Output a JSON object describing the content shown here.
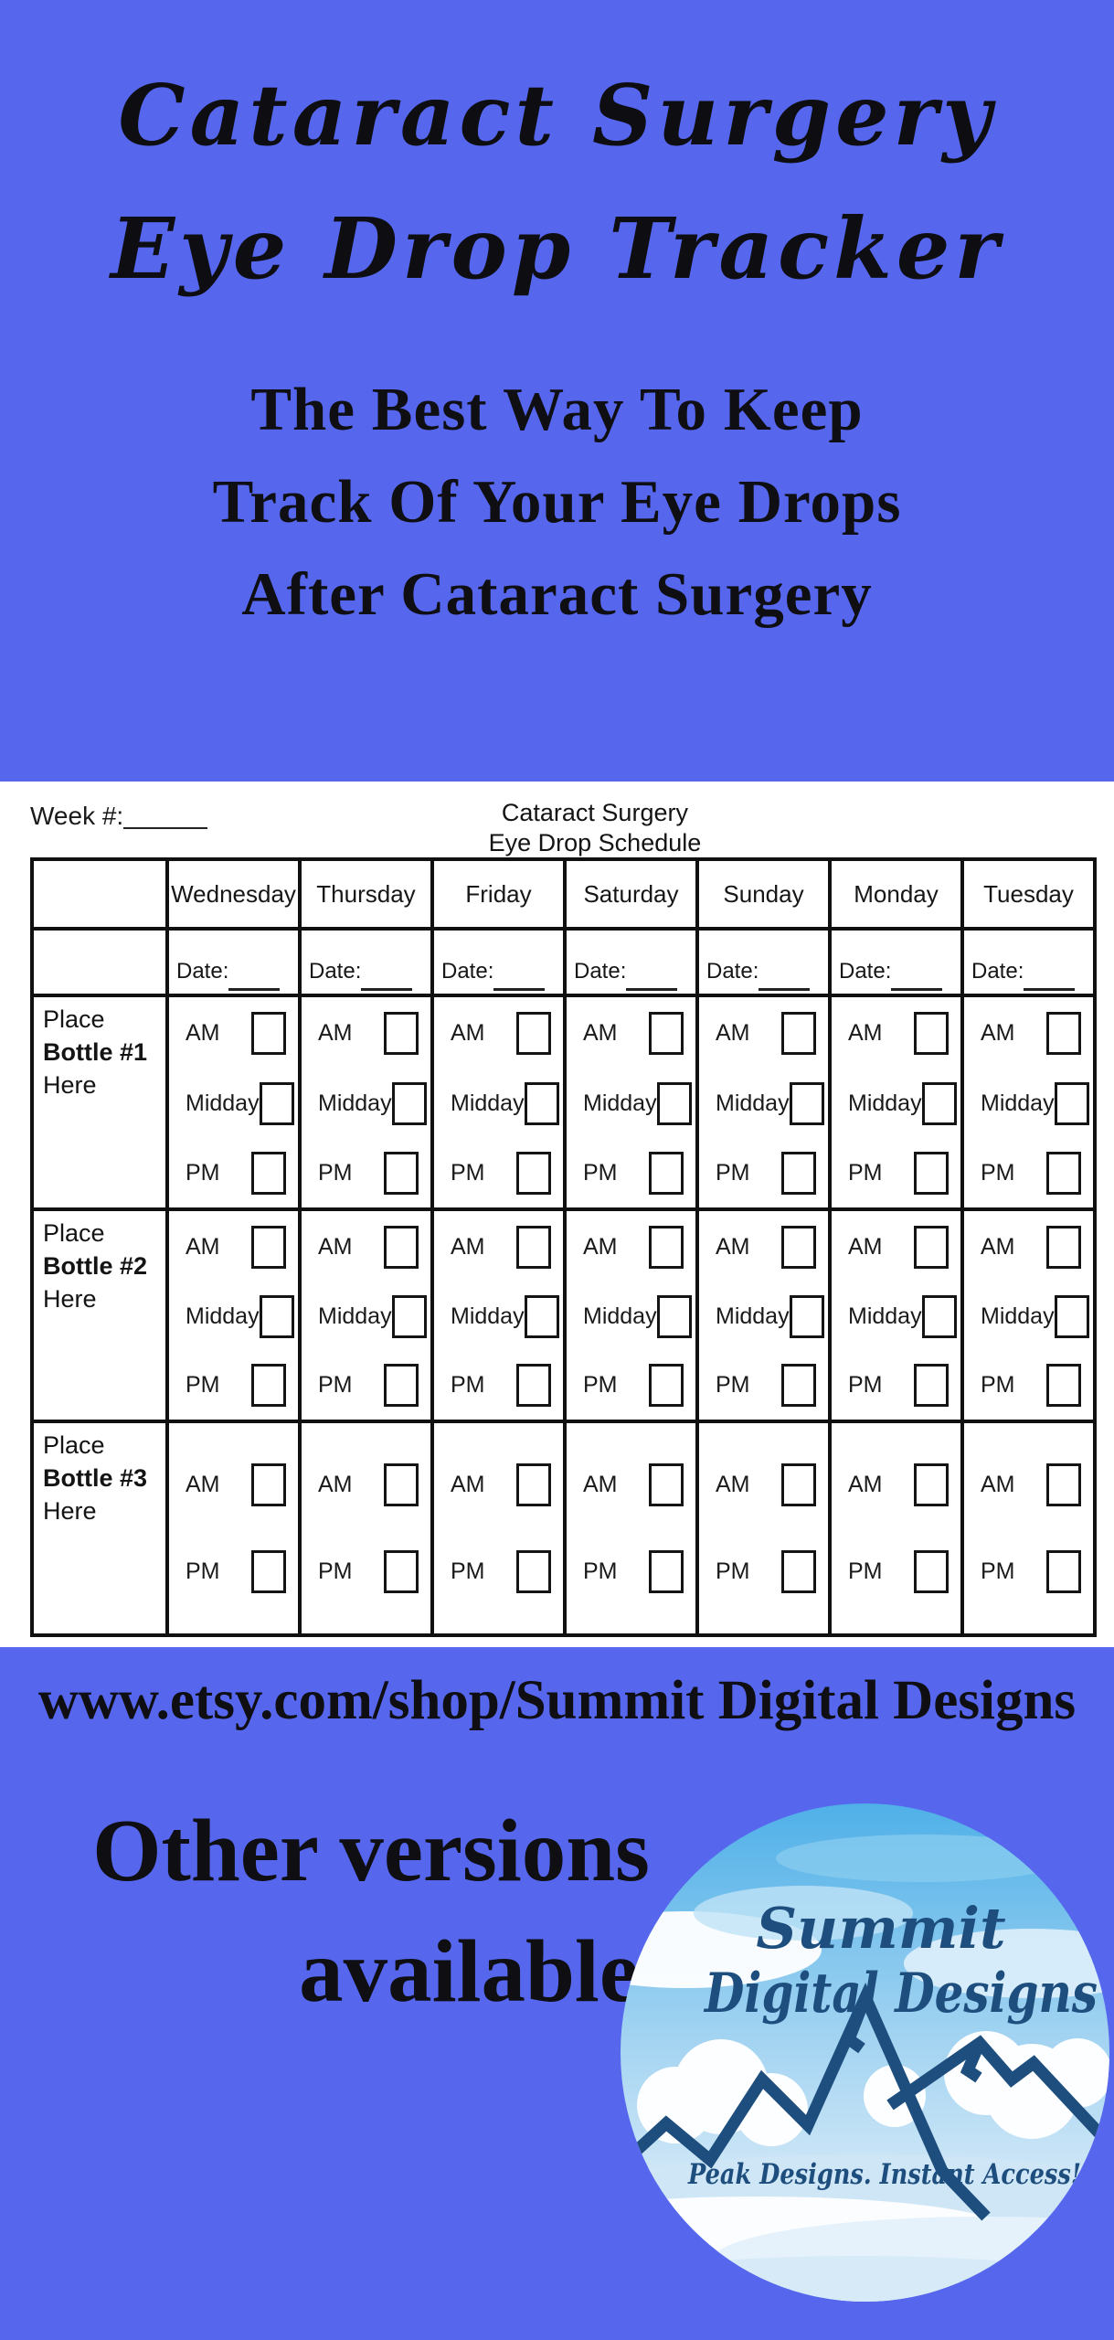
{
  "hero": {
    "title_line1": "Cataract Surgery",
    "title_line2": "Eye Drop Tracker",
    "subtitle_line1": "The Best Way To Keep",
    "subtitle_line2": "Track Of Your Eye Drops",
    "subtitle_line3": "After Cataract Surgery"
  },
  "sheet": {
    "week_label": "Week #:",
    "heading_line1": "Cataract Surgery",
    "heading_line2": "Eye Drop Schedule",
    "date_label": "Date:",
    "days": [
      "Wednesday",
      "Thursday",
      "Friday",
      "Saturday",
      "Sunday",
      "Monday",
      "Tuesday"
    ],
    "bottles": [
      {
        "label_top": "Place",
        "label_bold": "Bottle #1",
        "label_bottom": "Here",
        "doses": [
          "AM",
          "Midday",
          "PM"
        ]
      },
      {
        "label_top": "Place",
        "label_bold": "Bottle #2",
        "label_bottom": "Here",
        "doses": [
          "AM",
          "Midday",
          "PM"
        ]
      },
      {
        "label_top": "Place",
        "label_bold": "Bottle #3",
        "label_bottom": "Here",
        "doses": [
          "AM",
          "PM"
        ]
      }
    ]
  },
  "footer": {
    "shop_url": "www.etsy.com/shop/Summit Digital Designs",
    "other_versions_line1": "Other versions",
    "other_versions_line2": "available",
    "logo": {
      "name_line1": "Summit",
      "name_line2": "Digital Designs",
      "tagline": "Peak Designs. Instant Access!"
    }
  },
  "colors": {
    "background_blue": "#5667ee",
    "sheet_white": "#ffffff",
    "text_black": "#0d0d12",
    "table_line_black": "#101010",
    "logo_navy": "#1d4e7e",
    "logo_sky_top": "#4fb0e8",
    "logo_sky_bottom": "#ddeefa"
  }
}
